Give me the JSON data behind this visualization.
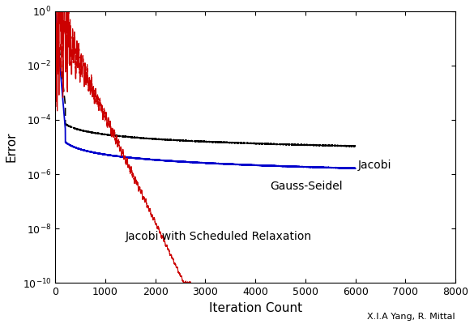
{
  "title": "",
  "xlabel": "Iteration Count",
  "ylabel": "Error",
  "xlim": [
    0,
    8000
  ],
  "ylim_log": [
    -10,
    0
  ],
  "xticks": [
    0,
    1000,
    2000,
    3000,
    4000,
    5000,
    6000,
    7000,
    8000
  ],
  "jacobi_label": "Jacobi",
  "gauss_label": "Gauss-Seidel",
  "relaxation_label": "Jacobi with Scheduled Relaxation",
  "author_text": "X.I.A Yang, R. Mittal",
  "jacobi_color": "#000000",
  "gauss_color": "#0000cc",
  "relaxation_color": "#cc0000",
  "jacobi_end_iter": 6000,
  "gauss_end_iter": 6000,
  "relaxation_end_iter": 2700,
  "seed": 42,
  "figsize": [
    5.85,
    4.0
  ],
  "dpi": 100
}
